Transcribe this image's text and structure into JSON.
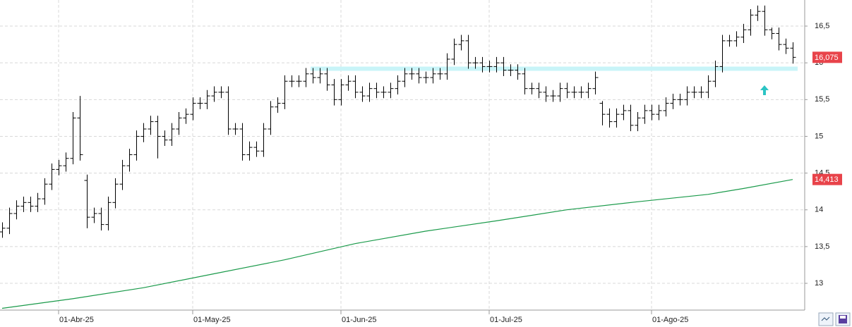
{
  "chart_data": {
    "type": "ohlc",
    "ylim": [
      12.636,
      16.855
    ],
    "yticks": [
      13,
      {
        "value": 13.5,
        "label": "13,5"
      },
      14,
      {
        "value": 14.5,
        "label": "14,5"
      },
      15,
      {
        "value": 15.5,
        "label": "15,5"
      },
      16,
      {
        "value": 16.5,
        "label": "16,5"
      }
    ],
    "xlim": [
      -0.3,
      113.7
    ],
    "xticks": [
      {
        "value": 8,
        "label": "01-Abr-25"
      },
      {
        "value": 27,
        "label": "01-May-25"
      },
      {
        "value": 48,
        "label": "01-Jun-25"
      },
      {
        "value": 69,
        "label": "01-Jul-25"
      },
      {
        "value": 92,
        "label": "01-Ago-25"
      }
    ],
    "grid": true,
    "color": "#000000",
    "open": [
      13.7,
      13.75,
      13.95,
      14.05,
      14.1,
      14.05,
      14.15,
      14.35,
      14.55,
      14.6,
      14.7,
      15.25,
      14.4,
      13.9,
      13.95,
      13.8,
      14.1,
      14.35,
      14.6,
      14.75,
      15.0,
      15.1,
      15.2,
      15.0,
      14.95,
      15.1,
      15.25,
      15.3,
      15.45,
      15.45,
      15.55,
      15.6,
      15.6,
      15.1,
      15.1,
      14.75,
      14.85,
      14.8,
      15.1,
      15.4,
      15.45,
      15.75,
      15.75,
      15.75,
      15.85,
      15.8,
      15.85,
      15.7,
      15.5,
      15.7,
      15.75,
      15.6,
      15.55,
      15.65,
      15.6,
      15.6,
      15.65,
      15.75,
      15.85,
      15.85,
      15.8,
      15.8,
      15.85,
      15.85,
      16.05,
      16.25,
      16.3,
      16.0,
      16.0,
      15.95,
      15.95,
      16.0,
      15.9,
      15.9,
      15.85,
      15.65,
      15.65,
      15.6,
      15.55,
      15.55,
      15.65,
      15.6,
      15.6,
      15.6,
      15.65,
      15.45,
      15.3,
      15.2,
      15.3,
      15.35,
      15.15,
      15.25,
      15.35,
      15.3,
      15.35,
      15.45,
      15.5,
      15.5,
      15.6,
      15.6,
      15.6,
      15.75,
      15.95,
      16.3,
      16.3,
      16.35,
      16.45,
      16.65,
      16.7,
      16.45,
      16.4,
      16.25,
      16.2
    ],
    "high": [
      13.83,
      14.03,
      14.13,
      14.18,
      14.18,
      14.23,
      14.43,
      14.63,
      14.68,
      14.78,
      15.33,
      15.55,
      14.48,
      14.03,
      14.03,
      14.18,
      14.43,
      14.68,
      14.83,
      15.08,
      15.18,
      15.28,
      15.28,
      15.08,
      15.18,
      15.33,
      15.38,
      15.53,
      15.53,
      15.63,
      15.68,
      15.68,
      15.68,
      15.18,
      15.18,
      14.93,
      14.93,
      15.18,
      15.48,
      15.53,
      15.83,
      15.83,
      15.83,
      15.93,
      15.93,
      15.93,
      15.93,
      15.78,
      15.78,
      15.83,
      15.83,
      15.68,
      15.73,
      15.73,
      15.68,
      15.73,
      15.83,
      15.93,
      15.93,
      15.93,
      15.88,
      15.93,
      15.93,
      16.13,
      16.33,
      16.38,
      16.38,
      16.08,
      16.08,
      16.03,
      16.08,
      16.08,
      15.98,
      15.98,
      15.93,
      15.73,
      15.73,
      15.68,
      15.63,
      15.73,
      15.73,
      15.68,
      15.68,
      15.73,
      15.88,
      15.48,
      15.38,
      15.38,
      15.43,
      15.43,
      15.33,
      15.43,
      15.43,
      15.43,
      15.53,
      15.58,
      15.58,
      15.68,
      15.68,
      15.68,
      15.83,
      16.03,
      16.38,
      16.38,
      16.43,
      16.53,
      16.73,
      16.78,
      16.78,
      16.48,
      16.48,
      16.33,
      16.28
    ],
    "low": [
      13.62,
      13.67,
      13.87,
      13.97,
      13.97,
      13.97,
      14.07,
      14.27,
      14.47,
      14.52,
      14.62,
      14.67,
      13.75,
      13.82,
      13.72,
      13.72,
      14.02,
      14.27,
      14.52,
      14.67,
      14.92,
      15.02,
      14.7,
      14.87,
      14.87,
      15.02,
      15.17,
      15.22,
      15.37,
      15.37,
      15.47,
      15.52,
      15.02,
      15.02,
      14.67,
      14.67,
      14.72,
      14.72,
      15.02,
      15.32,
      15.37,
      15.67,
      15.67,
      15.67,
      15.72,
      15.72,
      15.62,
      15.42,
      15.42,
      15.62,
      15.52,
      15.47,
      15.47,
      15.52,
      15.52,
      15.52,
      15.57,
      15.67,
      15.77,
      15.72,
      15.72,
      15.72,
      15.77,
      15.77,
      15.97,
      16.17,
      15.92,
      15.92,
      15.87,
      15.87,
      15.87,
      15.82,
      15.82,
      15.77,
      15.57,
      15.57,
      15.52,
      15.47,
      15.47,
      15.47,
      15.52,
      15.52,
      15.52,
      15.52,
      15.57,
      15.15,
      15.12,
      15.12,
      15.22,
      15.07,
      15.07,
      15.17,
      15.22,
      15.22,
      15.27,
      15.37,
      15.42,
      15.42,
      15.52,
      15.52,
      15.52,
      15.67,
      15.87,
      16.22,
      16.22,
      16.27,
      16.37,
      16.57,
      16.37,
      16.32,
      16.17,
      16.12,
      15.99
    ],
    "close": [
      13.75,
      13.95,
      14.05,
      14.1,
      14.05,
      14.15,
      14.35,
      14.55,
      14.6,
      14.7,
      15.25,
      14.75,
      13.9,
      13.95,
      13.8,
      14.1,
      14.35,
      14.6,
      14.75,
      15.0,
      15.1,
      15.2,
      15.0,
      14.95,
      15.1,
      15.25,
      15.3,
      15.45,
      15.45,
      15.55,
      15.6,
      15.6,
      15.1,
      15.1,
      14.75,
      14.85,
      14.8,
      15.1,
      15.4,
      15.45,
      15.75,
      15.75,
      15.75,
      15.85,
      15.8,
      15.85,
      15.7,
      15.5,
      15.7,
      15.75,
      15.6,
      15.55,
      15.65,
      15.6,
      15.6,
      15.65,
      15.75,
      15.85,
      15.85,
      15.8,
      15.8,
      15.85,
      15.85,
      16.05,
      16.25,
      16.3,
      16.0,
      16.0,
      15.95,
      15.95,
      16.0,
      15.9,
      15.9,
      15.85,
      15.65,
      15.65,
      15.6,
      15.55,
      15.55,
      15.65,
      15.6,
      15.6,
      15.6,
      15.65,
      15.8,
      15.3,
      15.2,
      15.3,
      15.35,
      15.15,
      15.25,
      15.35,
      15.3,
      15.35,
      15.45,
      15.5,
      15.5,
      15.6,
      15.6,
      15.6,
      15.75,
      15.95,
      16.3,
      16.3,
      16.35,
      16.45,
      16.65,
      16.7,
      16.45,
      16.4,
      16.25,
      16.2,
      16.075
    ],
    "moving_average": {
      "color": "#1a9a4a",
      "x": [
        0,
        10,
        20,
        30,
        40,
        50,
        60,
        70,
        80,
        90,
        100,
        105,
        112
      ],
      "values": [
        12.66,
        12.79,
        12.94,
        13.13,
        13.32,
        13.54,
        13.71,
        13.85,
        14.0,
        14.11,
        14.21,
        14.29,
        14.413
      ]
    },
    "support": {
      "value": 15.92,
      "color": "#c8f4f8"
    },
    "price_tags": [
      {
        "value": 16.075,
        "label": "16,075",
        "color": "#e8434a"
      },
      {
        "value": 14.413,
        "label": "14,413",
        "color": "#e8434a"
      }
    ]
  }
}
